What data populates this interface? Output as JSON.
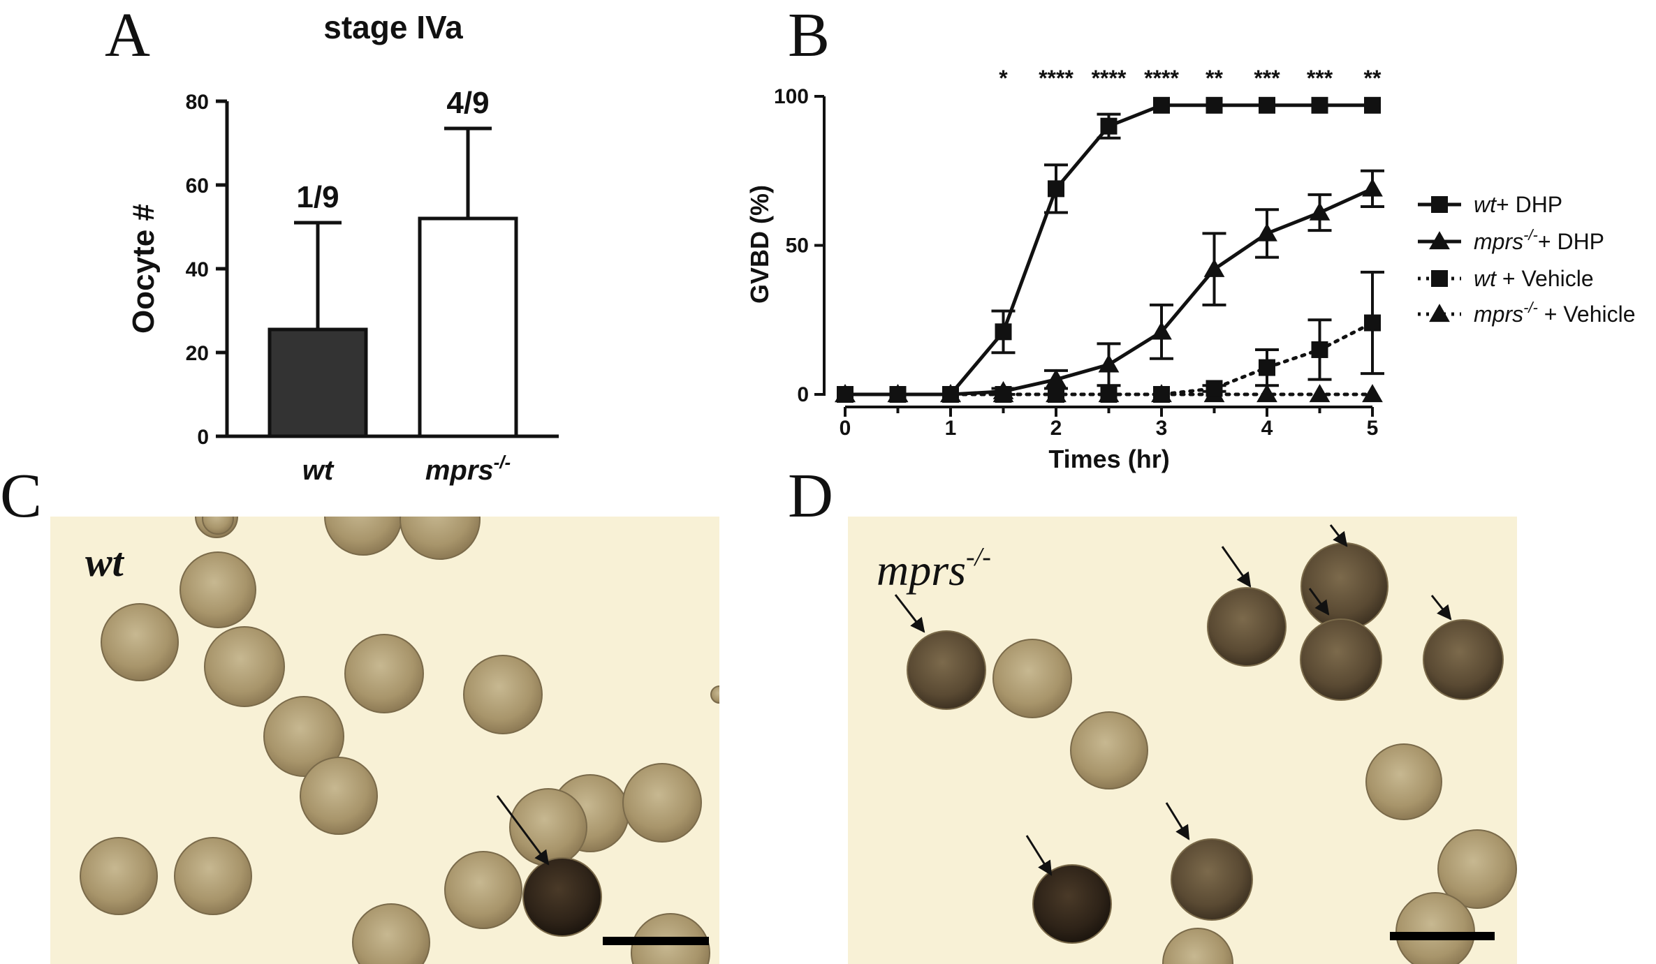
{
  "panels": {
    "A": "A",
    "B": "B",
    "C": "C",
    "D": "D"
  },
  "chart_data": [
    {
      "panel": "A",
      "type": "bar",
      "title": "stage IVa",
      "ylabel": "Oocyte #",
      "xlabel": "",
      "ylim": [
        0,
        80
      ],
      "yticks": [
        "0",
        "20",
        "40",
        "60",
        "80"
      ],
      "categories": [
        "wt",
        "mprs"
      ],
      "category_superscript": [
        "",
        "-/-"
      ],
      "values": [
        25.5,
        52
      ],
      "error_upper": [
        51,
        73.5
      ],
      "bar_labels": [
        "1/9",
        "4/9"
      ],
      "bar_colors": [
        "#333333",
        "#ffffff"
      ]
    },
    {
      "panel": "B",
      "type": "line",
      "xlabel": "Times (hr)",
      "ylabel": "GVBD (%)",
      "xlim": [
        0,
        5
      ],
      "ylim": [
        0,
        100
      ],
      "xticks": [
        "0",
        "1",
        "2",
        "3",
        "4",
        "5"
      ],
      "yticks": [
        "0",
        "50",
        "100"
      ],
      "x": [
        0,
        0.5,
        1,
        1.5,
        2,
        2.5,
        3,
        3.5,
        4,
        4.5,
        5
      ],
      "series": [
        {
          "name": "wt",
          "name_suffix": "+ DHP",
          "marker": "square",
          "dash": "solid",
          "values": [
            0,
            0,
            0,
            21,
            69,
            90,
            97,
            97,
            97,
            97,
            97
          ],
          "errors": [
            0,
            0,
            0,
            7,
            8,
            4,
            0,
            0,
            0,
            0,
            0
          ]
        },
        {
          "name": "mprs",
          "name_superscript": "-/-",
          "name_suffix": "+ DHP",
          "marker": "triangle",
          "dash": "solid",
          "values": [
            0,
            0,
            0,
            1,
            5,
            10,
            21,
            42,
            54,
            61,
            69
          ],
          "errors": [
            0,
            0,
            0,
            1,
            3,
            7,
            9,
            12,
            8,
            6,
            6
          ]
        },
        {
          "name": "wt",
          "name_suffix": " + Vehicle",
          "marker": "square",
          "dash": "dotted",
          "values": [
            0,
            0,
            0,
            0,
            0,
            0,
            0,
            2,
            9,
            15,
            24
          ],
          "errors": [
            0,
            0,
            0,
            0,
            0,
            0,
            0,
            1,
            6,
            10,
            17
          ]
        },
        {
          "name": "mprs",
          "name_superscript": "-/-",
          "name_suffix": " + Vehicle",
          "marker": "triangle",
          "dash": "dotted",
          "values": [
            0,
            0,
            0,
            0,
            0,
            0,
            0,
            0,
            0,
            0,
            0
          ],
          "errors": [
            0,
            0,
            0,
            0,
            0,
            0,
            0,
            0,
            0,
            0,
            0
          ]
        }
      ],
      "significance": [
        {
          "x": 1.5,
          "label": "*"
        },
        {
          "x": 2,
          "label": "****"
        },
        {
          "x": 2.5,
          "label": "****"
        },
        {
          "x": 3,
          "label": "****"
        },
        {
          "x": 3.5,
          "label": "**"
        },
        {
          "x": 4,
          "label": "***"
        },
        {
          "x": 4.5,
          "label": "***"
        },
        {
          "x": 5,
          "label": "**"
        }
      ],
      "legend_position": "right"
    }
  ],
  "micrographs": {
    "C": {
      "label": "wt",
      "label_superscript": ""
    },
    "D": {
      "label": "mprs",
      "label_superscript": "-/-"
    }
  },
  "colors": {
    "ink": "#111111",
    "bar_wt": "#333333",
    "bar_mprs": "#ffffff",
    "background_photo": "#f8f1d6",
    "oocyte_light": "#ac9a73",
    "oocyte_dark": "#2a2016"
  }
}
